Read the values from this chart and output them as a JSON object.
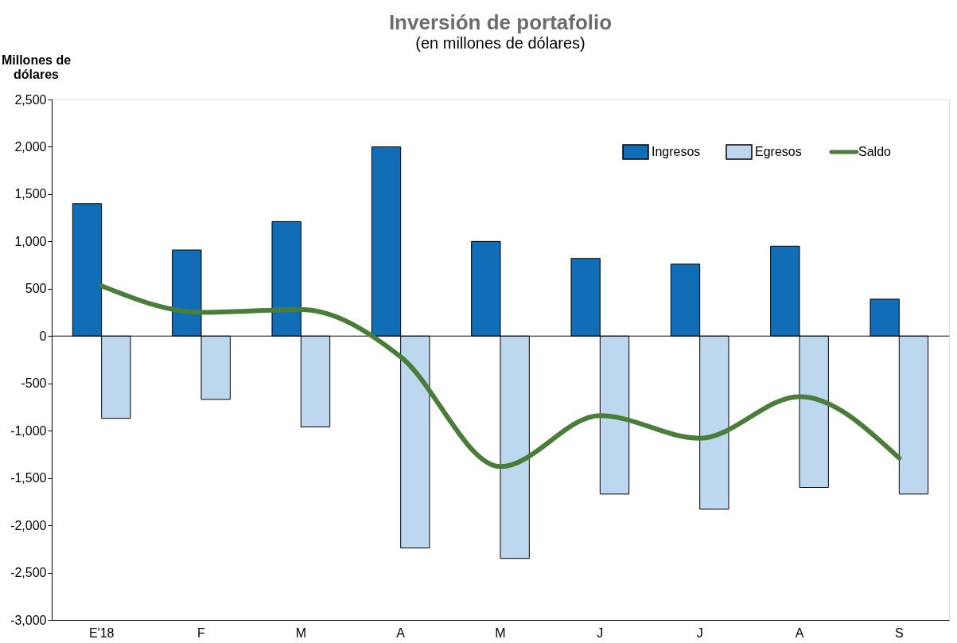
{
  "chart_data": {
    "type": "bar",
    "title": "Inversión de portafolio",
    "subtitle": "(en millones de dólares)",
    "ylabel": "Millones de dólares",
    "categories": [
      "E'18",
      "F",
      "M",
      "A",
      "M",
      "J",
      "J",
      "A",
      "S"
    ],
    "series": [
      {
        "name": "Ingresos",
        "color": "#116db5",
        "values": [
          1400,
          910,
          1210,
          2000,
          1000,
          820,
          760,
          950,
          390
        ]
      },
      {
        "name": "Egresos",
        "color": "#bdd7ee",
        "values": [
          -870,
          -670,
          -960,
          -2240,
          -2350,
          -1670,
          -1830,
          -1600,
          -1670
        ]
      },
      {
        "name": "Saldo",
        "type": "line",
        "color": "#4a7d39",
        "values": [
          530,
          250,
          280,
          -220,
          -1380,
          -840,
          -1080,
          -640,
          -1290
        ]
      }
    ],
    "ylim": [
      -3000,
      2500
    ],
    "yticks": [
      {
        "value": -3000,
        "label": "-3,000"
      },
      {
        "value": -2500,
        "label": "-2,500"
      },
      {
        "value": -2000,
        "label": "-2,000"
      },
      {
        "value": -1500,
        "label": "-1,500"
      },
      {
        "value": -1000,
        "label": "-1,000"
      },
      -500,
      0,
      500,
      {
        "value": 1000,
        "label": "1,000"
      },
      {
        "value": 1500,
        "label": "1,500"
      },
      {
        "value": 2000,
        "label": "2,000"
      },
      {
        "value": 2500,
        "label": "2,500"
      }
    ],
    "ref_lines": [
      {
        "axis": "y",
        "value": 0
      }
    ],
    "grid": false,
    "legend": "top right"
  }
}
